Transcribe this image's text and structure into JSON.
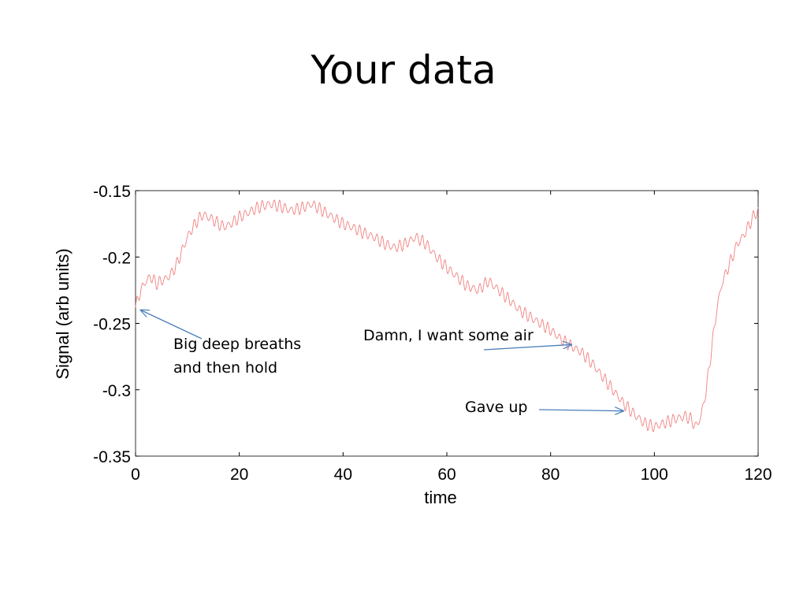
{
  "slide": {
    "title": "Your data"
  },
  "colors": {
    "series": "#f08080",
    "arrow": "#4a7ebb",
    "axis": "#000000"
  },
  "chart_data": {
    "type": "line",
    "xlabel": "time",
    "ylabel": "Signal (arb units)",
    "xlim": [
      0,
      120
    ],
    "ylim": [
      -0.35,
      -0.15
    ],
    "xticks": [
      0,
      20,
      40,
      60,
      80,
      100,
      120
    ],
    "xtick_labels": [
      "0",
      "20",
      "40",
      "60",
      "80",
      "100",
      "120"
    ],
    "yticks": [
      -0.15,
      -0.2,
      -0.25,
      -0.3,
      -0.35
    ],
    "ytick_labels": [
      "-0.15",
      "-0.2",
      "-0.25",
      "-0.3",
      "-0.35"
    ],
    "grid": false,
    "series": [
      {
        "x": [
          0,
          1,
          2,
          3,
          4,
          5,
          6,
          7,
          8,
          9,
          10,
          11,
          12,
          13,
          14,
          15,
          16,
          17,
          18,
          19,
          20,
          22,
          24,
          26,
          28,
          30,
          32,
          34,
          36,
          38,
          40,
          42,
          44,
          46,
          48,
          50,
          52,
          54,
          56,
          58,
          60,
          62,
          64,
          66,
          68,
          70,
          72,
          74,
          76,
          78,
          80,
          82,
          84,
          86,
          88,
          90,
          92,
          94,
          96,
          98,
          100,
          102,
          104,
          106,
          107,
          108,
          109,
          110,
          111,
          112,
          113,
          114,
          115,
          116,
          117,
          118,
          119,
          120
        ],
        "y": [
          -0.238,
          -0.225,
          -0.218,
          -0.215,
          -0.22,
          -0.218,
          -0.216,
          -0.212,
          -0.205,
          -0.195,
          -0.185,
          -0.178,
          -0.172,
          -0.168,
          -0.17,
          -0.172,
          -0.175,
          -0.177,
          -0.176,
          -0.173,
          -0.17,
          -0.166,
          -0.162,
          -0.16,
          -0.162,
          -0.165,
          -0.163,
          -0.16,
          -0.165,
          -0.17,
          -0.175,
          -0.178,
          -0.182,
          -0.185,
          -0.19,
          -0.193,
          -0.19,
          -0.185,
          -0.19,
          -0.2,
          -0.208,
          -0.215,
          -0.222,
          -0.225,
          -0.218,
          -0.225,
          -0.232,
          -0.24,
          -0.245,
          -0.25,
          -0.255,
          -0.262,
          -0.267,
          -0.272,
          -0.28,
          -0.29,
          -0.3,
          -0.31,
          -0.318,
          -0.325,
          -0.328,
          -0.325,
          -0.322,
          -0.32,
          -0.322,
          -0.328,
          -0.32,
          -0.3,
          -0.27,
          -0.24,
          -0.22,
          -0.21,
          -0.2,
          -0.19,
          -0.185,
          -0.178,
          -0.17,
          -0.165
        ]
      }
    ],
    "annotations": [
      {
        "lines": [
          "Big deep breaths",
          "and then hold"
        ],
        "arrow_to": [
          1,
          -0.24
        ]
      },
      {
        "lines": [
          "Damn, I want some air"
        ],
        "arrow_to": [
          84,
          -0.266
        ]
      },
      {
        "lines": [
          "Gave up"
        ],
        "arrow_to": [
          94,
          -0.316
        ]
      }
    ]
  }
}
